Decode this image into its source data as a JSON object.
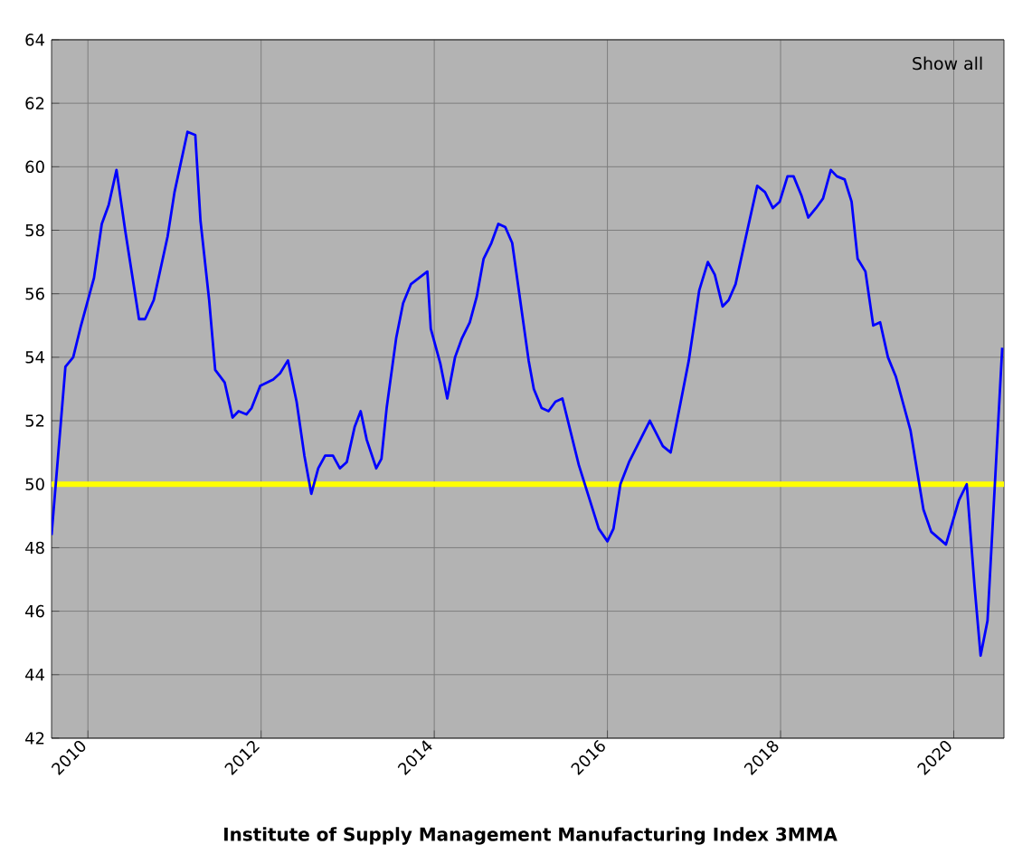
{
  "chart_data": {
    "type": "line",
    "title": "Institute of Supply Management Manufacturing Index 3MMA",
    "annotations": [
      "Show all"
    ],
    "x": [
      2009.58,
      2009.74,
      2009.83,
      2009.92,
      2010.07,
      2010.16,
      2010.24,
      2010.33,
      2010.43,
      2010.59,
      2010.66,
      2010.76,
      2010.92,
      2011.0,
      2011.15,
      2011.24,
      2011.3,
      2011.4,
      2011.47,
      2011.58,
      2011.67,
      2011.74,
      2011.83,
      2011.89,
      2011.99,
      2012.14,
      2012.22,
      2012.31,
      2012.41,
      2012.5,
      2012.58,
      2012.66,
      2012.74,
      2012.83,
      2012.91,
      2012.99,
      2013.08,
      2013.15,
      2013.22,
      2013.33,
      2013.39,
      2013.45,
      2013.56,
      2013.64,
      2013.73,
      2013.92,
      2013.96,
      2014.07,
      2014.15,
      2014.24,
      2014.32,
      2014.41,
      2014.49,
      2014.57,
      2014.66,
      2014.74,
      2014.82,
      2014.9,
      2015.09,
      2015.15,
      2015.24,
      2015.32,
      2015.4,
      2015.48,
      2015.67,
      2015.9,
      2016.0,
      2016.07,
      2016.15,
      2016.25,
      2016.49,
      2016.64,
      2016.73,
      2016.84,
      2016.94,
      2017.06,
      2017.16,
      2017.24,
      2017.33,
      2017.4,
      2017.48,
      2017.6,
      2017.73,
      2017.82,
      2017.91,
      2017.99,
      2018.08,
      2018.15,
      2018.24,
      2018.32,
      2018.41,
      2018.49,
      2018.58,
      2018.65,
      2018.74,
      2018.82,
      2018.89,
      2018.98,
      2019.07,
      2019.15,
      2019.24,
      2019.33,
      2019.41,
      2019.5,
      2019.65,
      2019.74,
      2019.91,
      2020.06,
      2020.15,
      2020.24,
      2020.31,
      2020.39,
      2020.56
    ],
    "series": [
      {
        "color": "#0000ff",
        "values": [
          48.4,
          53.7,
          54.0,
          55.0,
          56.5,
          58.2,
          58.8,
          59.9,
          58.0,
          55.2,
          55.2,
          55.8,
          57.8,
          59.2,
          61.1,
          61.0,
          58.3,
          55.8,
          53.6,
          53.2,
          52.1,
          52.3,
          52.2,
          52.4,
          53.1,
          53.3,
          53.5,
          53.9,
          52.6,
          50.9,
          49.7,
          50.5,
          50.9,
          50.9,
          50.5,
          50.7,
          51.8,
          52.3,
          51.4,
          50.5,
          50.8,
          52.4,
          54.6,
          55.7,
          56.3,
          56.7,
          54.9,
          53.8,
          52.7,
          54.0,
          54.6,
          55.1,
          55.9,
          57.1,
          57.6,
          58.2,
          58.1,
          57.6,
          53.9,
          53.0,
          52.4,
          52.3,
          52.6,
          52.7,
          50.6,
          48.6,
          48.2,
          48.6,
          50.0,
          50.7,
          52.0,
          51.2,
          51.0,
          52.5,
          53.9,
          56.1,
          57.0,
          56.6,
          55.6,
          55.8,
          56.3,
          57.8,
          59.4,
          59.2,
          58.7,
          58.9,
          59.7,
          59.7,
          59.1,
          58.4,
          58.7,
          59.0,
          59.9,
          59.7,
          59.6,
          58.9,
          57.1,
          56.7,
          55.0,
          55.1,
          54.0,
          53.4,
          52.6,
          51.7,
          49.2,
          48.5,
          48.1,
          49.5,
          50.0,
          46.8,
          44.6,
          45.7,
          54.3
        ]
      }
    ],
    "xlim": [
      2009.58,
      2020.58
    ],
    "xticks": [
      2010,
      2012,
      2014,
      2016,
      2018,
      2020
    ],
    "ylim": [
      42,
      64
    ],
    "yticks": [
      42,
      44,
      46,
      48,
      50,
      52,
      54,
      56,
      58,
      60,
      62,
      64
    ],
    "grid": true,
    "marker": "none",
    "line_style": "solid",
    "ref_lines": [
      {
        "axis": "y",
        "value": 50,
        "color": "#ffff00"
      }
    ]
  }
}
